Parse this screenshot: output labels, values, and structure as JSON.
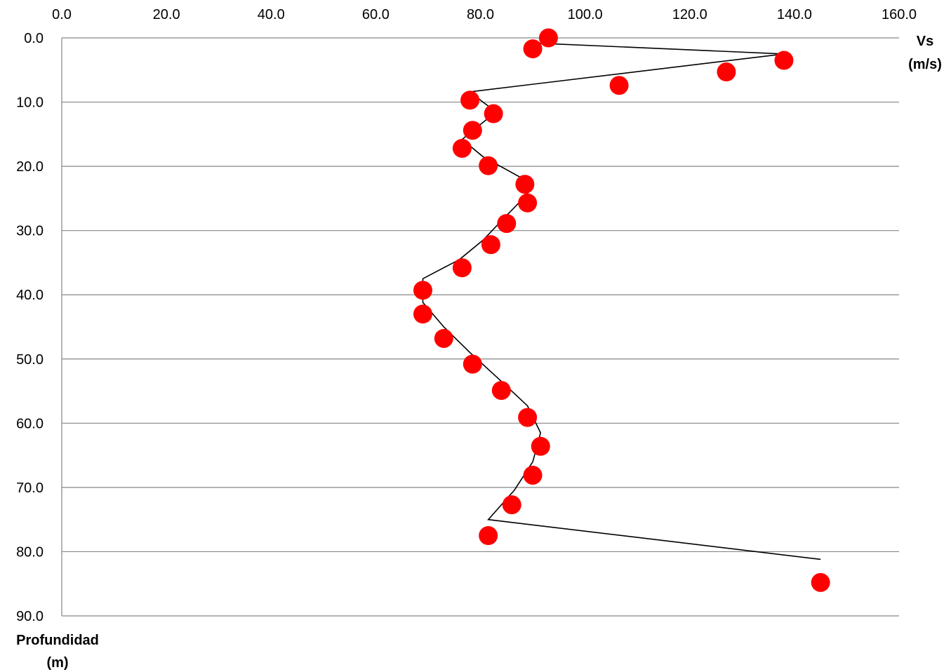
{
  "chart_data": {
    "type": "scatter",
    "title": "",
    "xlabel_line1": "Vs",
    "xlabel_line2": "(m/s)",
    "ylabel_line1": "Profundidad",
    "ylabel_line2": "(m)",
    "xlim": [
      0,
      160
    ],
    "ylim": [
      0,
      90
    ],
    "y_inverted": true,
    "x_axis_position": "top",
    "grid": "horizontal",
    "x_ticks": [
      "0.0",
      "20.0",
      "40.0",
      "60.0",
      "80.0",
      "100.0",
      "120.0",
      "140.0",
      "160.0"
    ],
    "y_ticks": [
      "0.0",
      "10.0",
      "20.0",
      "30.0",
      "40.0",
      "50.0",
      "60.0",
      "70.0",
      "80.0",
      "90.0"
    ],
    "marker_color": "#ff0000",
    "line_color": "#000000",
    "points": [
      {
        "vs": 93.0,
        "depth": 0.0
      },
      {
        "vs": 90.0,
        "depth": 1.7
      },
      {
        "vs": 138.0,
        "depth": 3.5
      },
      {
        "vs": 127.0,
        "depth": 5.3
      },
      {
        "vs": 106.5,
        "depth": 7.4
      },
      {
        "vs": 78.0,
        "depth": 9.7
      },
      {
        "vs": 82.5,
        "depth": 11.8
      },
      {
        "vs": 78.5,
        "depth": 14.4
      },
      {
        "vs": 76.5,
        "depth": 17.2
      },
      {
        "vs": 81.5,
        "depth": 19.9
      },
      {
        "vs": 88.5,
        "depth": 22.8
      },
      {
        "vs": 89.0,
        "depth": 25.7
      },
      {
        "vs": 85.0,
        "depth": 28.9
      },
      {
        "vs": 82.0,
        "depth": 32.2
      },
      {
        "vs": 76.5,
        "depth": 35.8
      },
      {
        "vs": 69.0,
        "depth": 39.3
      },
      {
        "vs": 69.0,
        "depth": 43.0
      },
      {
        "vs": 73.0,
        "depth": 46.8
      },
      {
        "vs": 78.5,
        "depth": 50.8
      },
      {
        "vs": 84.0,
        "depth": 54.9
      },
      {
        "vs": 89.0,
        "depth": 59.1
      },
      {
        "vs": 91.5,
        "depth": 63.6
      },
      {
        "vs": 90.0,
        "depth": 68.1
      },
      {
        "vs": 86.0,
        "depth": 72.7
      },
      {
        "vs": 81.5,
        "depth": 77.5
      },
      {
        "vs": 145.0,
        "depth": 84.8
      }
    ],
    "profile_line": [
      {
        "vs": 90.0,
        "depth": 0.8
      },
      {
        "vs": 138.0,
        "depth": 2.5
      },
      {
        "vs": 78.0,
        "depth": 8.4
      },
      {
        "vs": 80.5,
        "depth": 10.0
      },
      {
        "vs": 83.0,
        "depth": 11.5
      },
      {
        "vs": 76.5,
        "depth": 15.8
      },
      {
        "vs": 80.5,
        "depth": 18.5
      },
      {
        "vs": 88.5,
        "depth": 22.1
      },
      {
        "vs": 89.0,
        "depth": 24.3
      },
      {
        "vs": 84.0,
        "depth": 28.5
      },
      {
        "vs": 80.5,
        "depth": 31.5
      },
      {
        "vs": 76.0,
        "depth": 34.5
      },
      {
        "vs": 69.0,
        "depth": 37.5
      },
      {
        "vs": 69.0,
        "depth": 41.2
      },
      {
        "vs": 73.0,
        "depth": 45.0
      },
      {
        "vs": 78.0,
        "depth": 49.0
      },
      {
        "vs": 83.5,
        "depth": 53.1
      },
      {
        "vs": 89.0,
        "depth": 57.3
      },
      {
        "vs": 91.5,
        "depth": 61.5
      },
      {
        "vs": 90.0,
        "depth": 66.0
      },
      {
        "vs": 86.5,
        "depth": 70.4
      },
      {
        "vs": 81.5,
        "depth": 75.0
      },
      {
        "vs": 145.0,
        "depth": 81.2
      }
    ]
  }
}
